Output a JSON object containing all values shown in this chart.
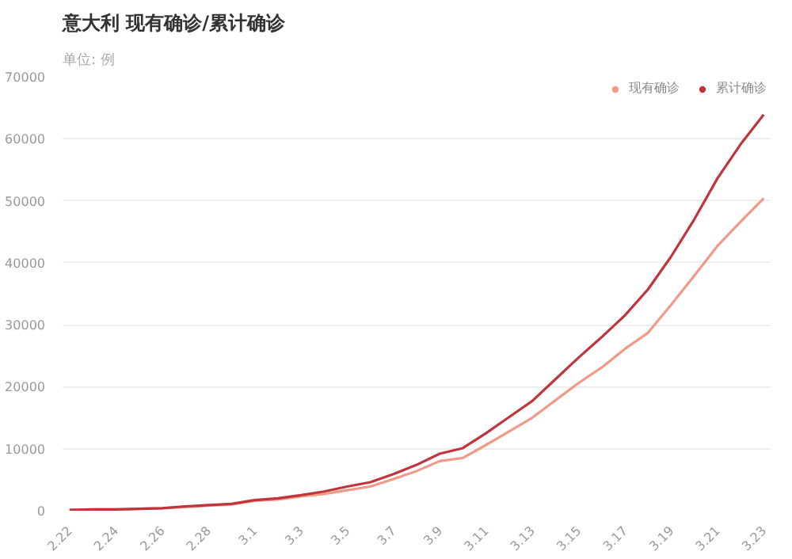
{
  "chart_data": {
    "type": "line",
    "title": "意大利 现有确诊/累计确诊",
    "subtitle": "单位: 例",
    "categories": [
      "2.22",
      null,
      "2.24",
      null,
      "2.26",
      null,
      "2.28",
      null,
      "3.1",
      null,
      "3.3",
      null,
      "3.5",
      null,
      "3.7",
      null,
      "3.9",
      null,
      "3.11",
      null,
      "3.13",
      null,
      "3.15",
      null,
      "3.17",
      null,
      "3.19",
      null,
      "3.21",
      null,
      "3.23"
    ],
    "series": [
      {
        "name": "现有确诊",
        "color": "#f09a88",
        "values": [
          100,
          200,
          200,
          300,
          400,
          600,
          800,
          1000,
          1600,
          1800,
          2300,
          2700,
          3300,
          3900,
          5100,
          6400,
          8000,
          8500,
          10600,
          12800,
          15000,
          17800,
          20600,
          23100,
          26100,
          28700,
          33200,
          37900,
          42700,
          46600,
          50400
        ]
      },
      {
        "name": "累计确诊",
        "color": "#c0353d",
        "values": [
          100,
          200,
          200,
          300,
          400,
          700,
          900,
          1100,
          1700,
          2000,
          2500,
          3100,
          3900,
          4600,
          5900,
          7400,
          9200,
          10100,
          12500,
          15100,
          17700,
          21200,
          24700,
          28000,
          31500,
          35700,
          41000,
          47000,
          53600,
          59100,
          63900
        ]
      }
    ],
    "ylim": [
      0,
      70000
    ],
    "yticks": [
      0,
      10000,
      20000,
      30000,
      40000,
      50000,
      60000,
      70000
    ],
    "grid": "y",
    "legend": "top right",
    "marker": "none",
    "line_style": "solid"
  }
}
